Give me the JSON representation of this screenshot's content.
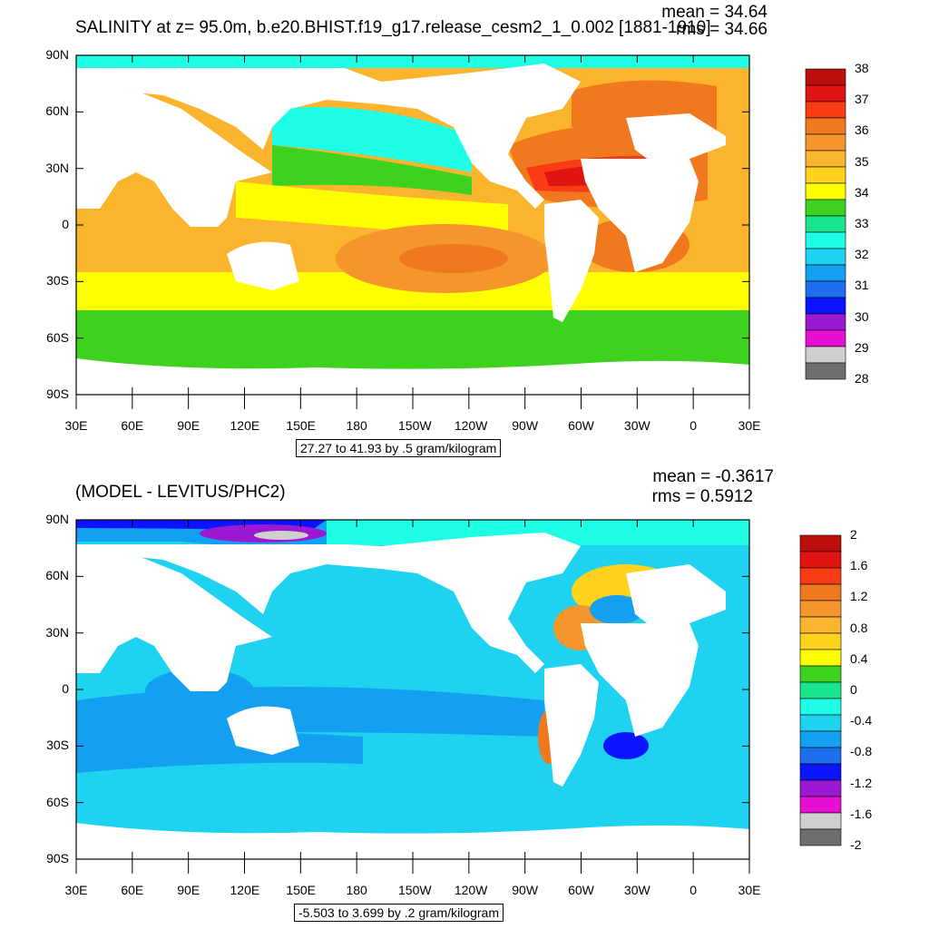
{
  "panels": [
    {
      "id": "top",
      "title": "SALINITY at z=  95.0m, b.e20.BHIST.f19_g17.release_cesm2_1_0.002 [1881-1910]",
      "stats": {
        "mean": "mean = 34.64",
        "rms": "rms = 34.66"
      },
      "range_label": "27.27 to 41.93 by .5 gram/kilogram",
      "colorbar": {
        "colors": [
          "#6e6e6e",
          "#cfcfcf",
          "#e60fd2",
          "#9b19d2",
          "#0a14ff",
          "#1e6ef0",
          "#14a0f0",
          "#1ed2f0",
          "#1effe6",
          "#19e68c",
          "#3cd21e",
          "#ffff00",
          "#ffd21e",
          "#fbb42d",
          "#f5962d",
          "#f0781e",
          "#fa3c14",
          "#e11414",
          "#be0f0f"
        ],
        "labels": [
          "38",
          "37",
          "36",
          "35",
          "34",
          "33",
          "32",
          "31",
          "30",
          "29",
          "28"
        ]
      }
    },
    {
      "id": "bottom",
      "title": "(MODEL - LEVITUS/PHC2)",
      "stats": {
        "mean": "mean = -0.3617",
        "rms": "rms = 0.5912"
      },
      "range_label": "-5.503 to 3.699 by .2 gram/kilogram",
      "colorbar": {
        "colors": [
          "#6e6e6e",
          "#cfcfcf",
          "#e60fd2",
          "#9b19d2",
          "#0a14ff",
          "#1e6ef0",
          "#14a0f0",
          "#1ed2f0",
          "#1effe6",
          "#19e68c",
          "#3cd21e",
          "#ffff00",
          "#ffd21e",
          "#fbb42d",
          "#f5962d",
          "#f0781e",
          "#fa3c14",
          "#e11414",
          "#be0f0f"
        ],
        "labels": [
          "2",
          "1.6",
          "1.2",
          "0.8",
          "0.4",
          "0",
          "-0.4",
          "-0.8",
          "-1.2",
          "-1.6",
          "-2"
        ]
      }
    }
  ],
  "axes": {
    "lat_labels": [
      "90N",
      "60N",
      "30N",
      "0",
      "30S",
      "60S",
      "90S"
    ],
    "lon_labels": [
      "30E",
      "60E",
      "90E",
      "120E",
      "150E",
      "180",
      "150W",
      "120W",
      "90W",
      "60W",
      "30W",
      "0",
      "30E"
    ]
  }
}
